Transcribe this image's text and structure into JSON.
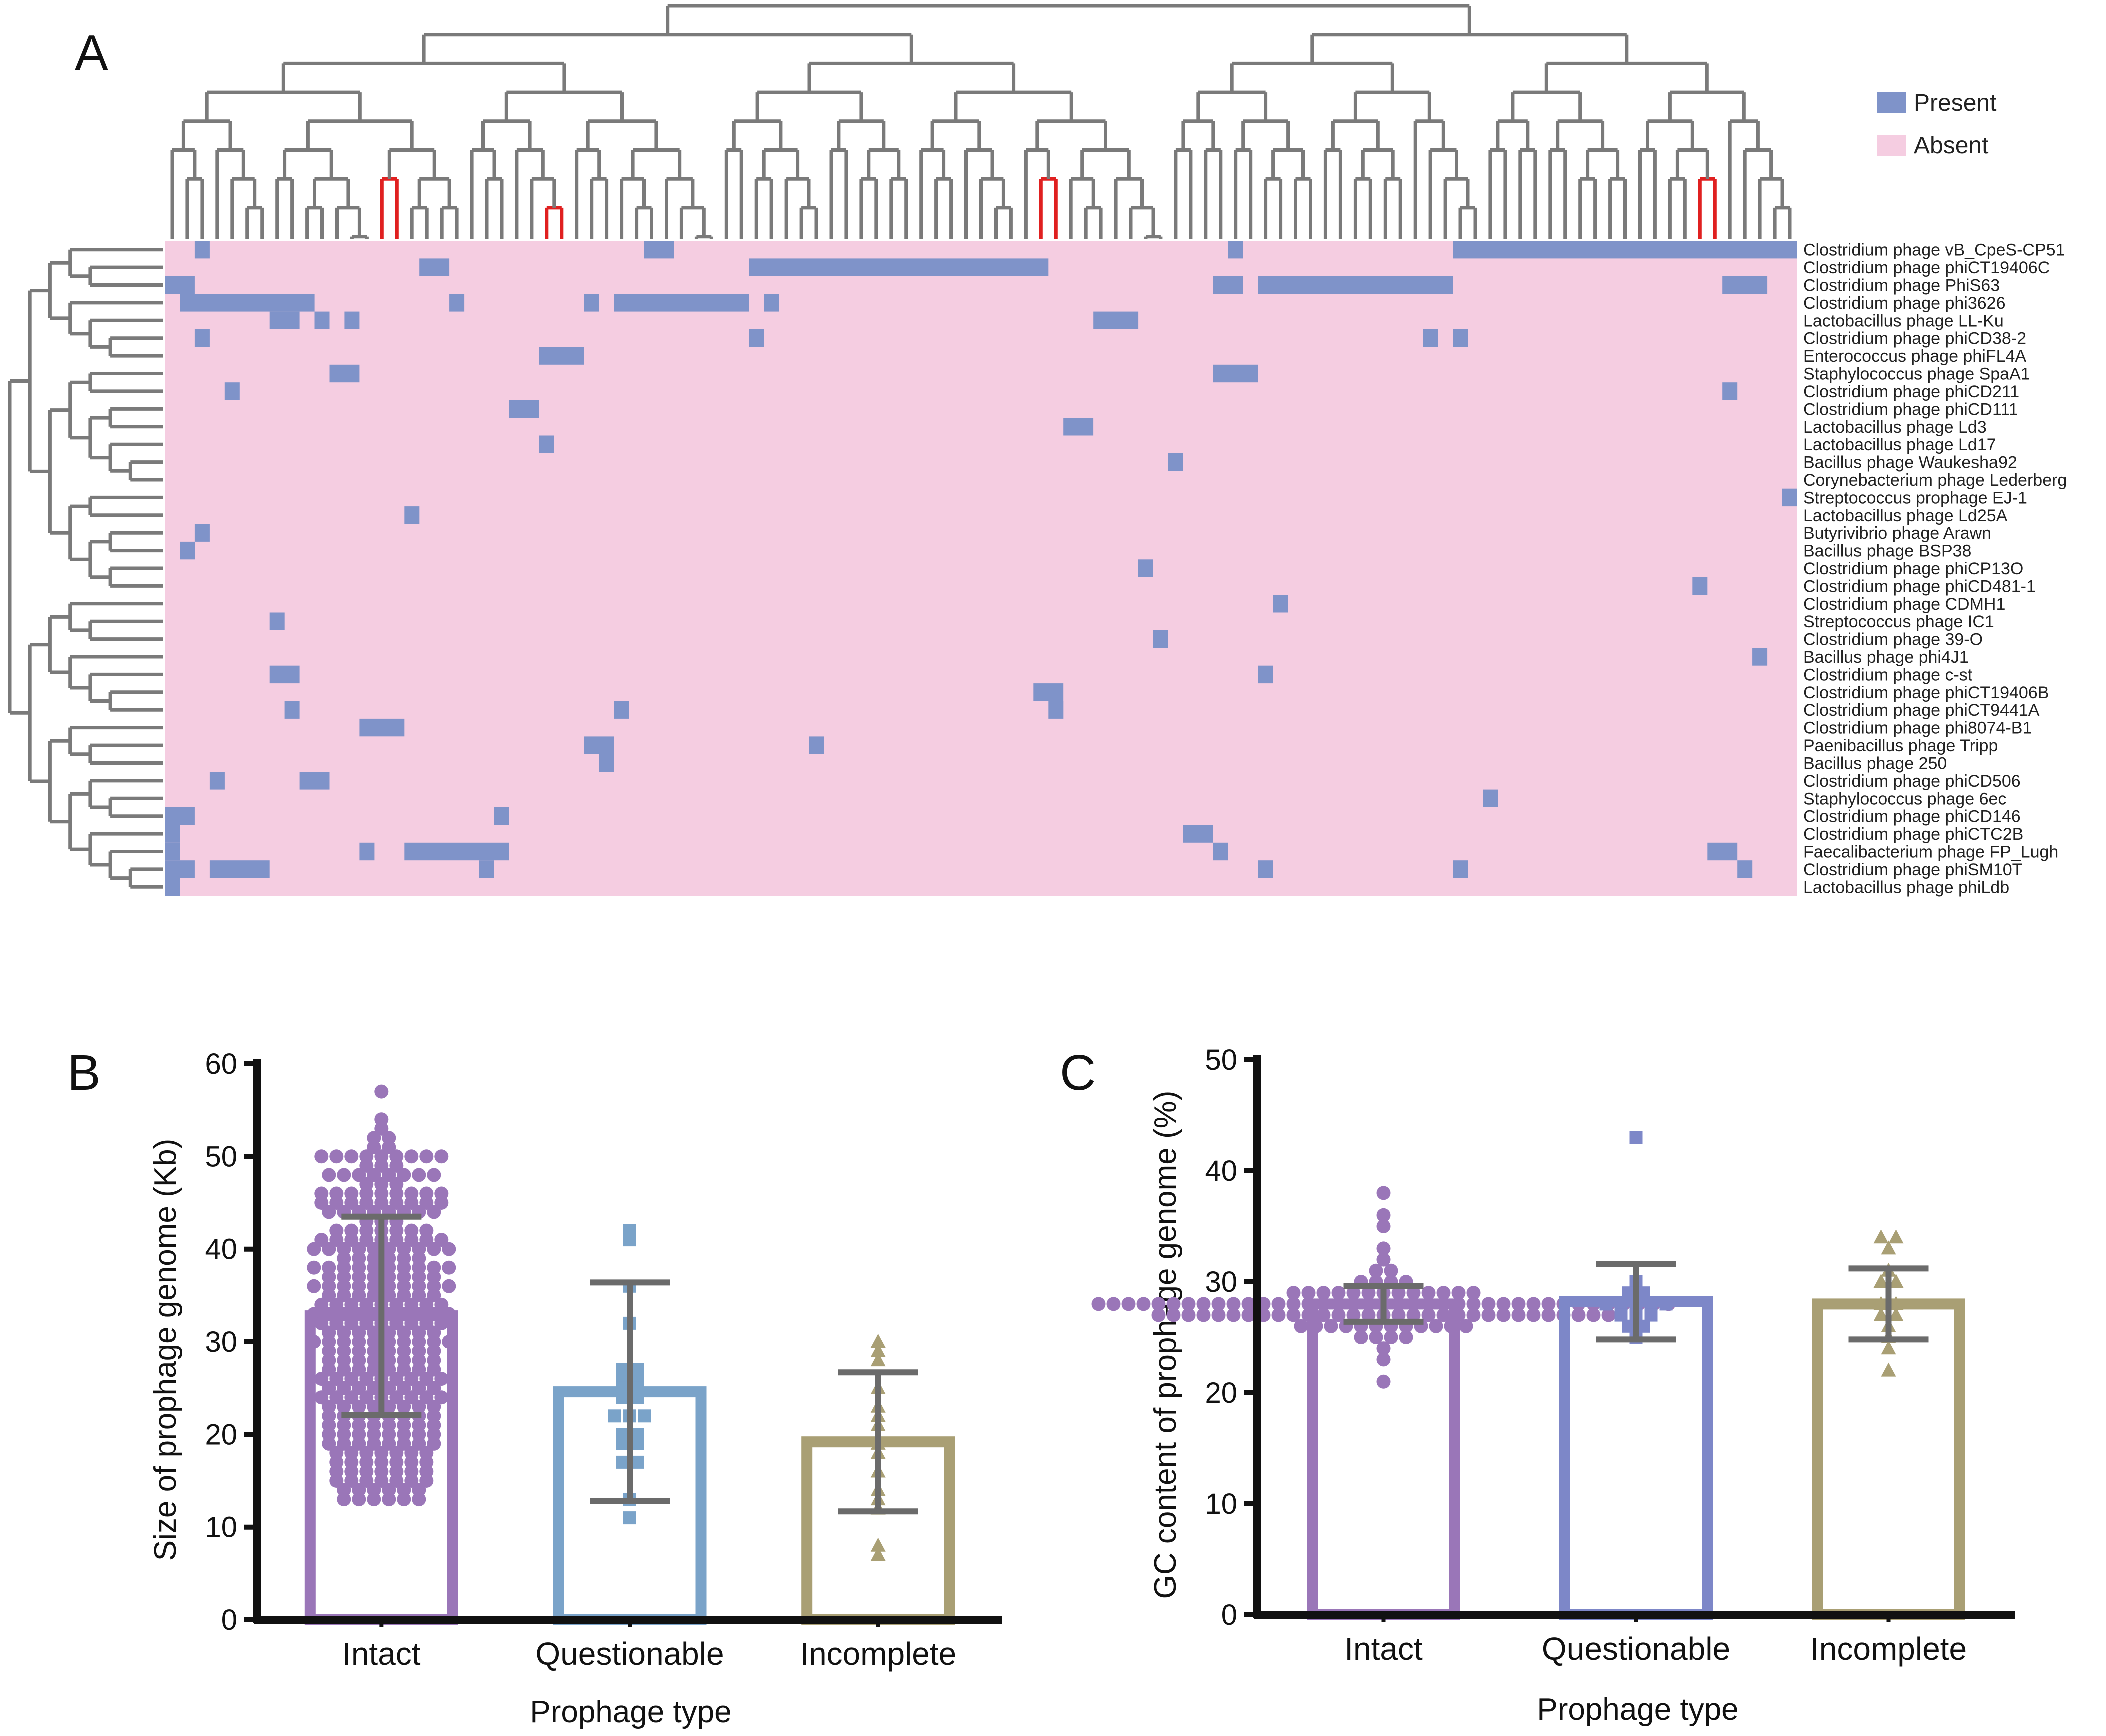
{
  "panels": {
    "a": "A",
    "b": "B",
    "c": "C"
  },
  "colors": {
    "present": "#7f93c9",
    "absent": "#f5cde1",
    "tree": "#7a7a7a",
    "tree_highlight": "#e02020",
    "intact": "#9a76b8",
    "questionable": "#7aa3c9",
    "questionable_c": "#7d87c8",
    "incomplete": "#a99f74",
    "axis": "#111111",
    "error_bar": "#6b6b6b"
  },
  "heatmap": {
    "legend": {
      "present": "Present",
      "absent": "Absent"
    },
    "rows": [
      "Clostridium phage vB_CpeS-CP51",
      "Clostridium phage phiCT19406C",
      "Clostridium phage PhiS63",
      "Clostridium phage phi3626",
      "Lactobacillus phage LL-Ku",
      "Clostridium phage phiCD38-2",
      "Enterococcus phage phiFL4A",
      "Staphylococcus phage SpaA1",
      "Clostridium phage phiCD211",
      "Clostridium phage phiCD111",
      "Lactobacillus phage Ld3",
      "Lactobacillus phage Ld17",
      "Bacillus phage Waukesha92",
      "Corynebacterium phage Lederberg",
      "Streptococcus prophage EJ-1",
      "Lactobacillus phage Ld25A",
      "Butyrivibrio phage Arawn",
      "Bacillus phage BSP38",
      "Clostridium phage phiCP13O",
      "Clostridium phage phiCD481-1",
      "Clostridium phage CDMH1",
      "Streptococcus phage IC1",
      "Clostridium phage 39-O",
      "Bacillus phage phi4J1",
      "Clostridium phage c-st",
      "Clostridium phage phiCT19406B",
      "Clostridium phage phiCT9441A",
      "Clostridium phage phi8074-B1",
      "Paenibacillus phage Tripp",
      "Bacillus phage 250",
      "Clostridium phage phiCD506",
      "Staphylococcus phage 6ec",
      "Clostridium phage phiCD146",
      "Clostridium phage phiCTC2B",
      "Faecalibacterium phage FP_Lugh",
      "Clostridium phage phiSM10T",
      "Lactobacillus phage phiLdb"
    ],
    "n_cols": 109,
    "present_cells": [
      [
        0,
        [
          [
            2,
            2
          ],
          [
            32,
            33
          ],
          [
            71,
            71
          ],
          [
            86,
            108
          ]
        ]
      ],
      [
        1,
        [
          [
            17,
            18
          ],
          [
            39,
            58
          ]
        ]
      ],
      [
        2,
        [
          [
            0,
            1
          ],
          [
            70,
            71
          ],
          [
            73,
            85
          ],
          [
            104,
            106
          ]
        ]
      ],
      [
        3,
        [
          [
            1,
            9
          ],
          [
            19,
            19
          ],
          [
            28,
            28
          ],
          [
            30,
            38
          ],
          [
            40,
            40
          ]
        ]
      ],
      [
        4,
        [
          [
            7,
            8
          ],
          [
            10,
            10
          ],
          [
            12,
            12
          ],
          [
            62,
            64
          ]
        ]
      ],
      [
        5,
        [
          [
            2,
            2
          ],
          [
            39,
            39
          ],
          [
            84,
            84
          ],
          [
            86,
            86
          ]
        ]
      ],
      [
        6,
        [
          [
            25,
            27
          ]
        ]
      ],
      [
        7,
        [
          [
            11,
            12
          ],
          [
            70,
            72
          ]
        ]
      ],
      [
        8,
        [
          [
            4,
            4
          ],
          [
            104,
            104
          ]
        ]
      ],
      [
        9,
        [
          [
            23,
            24
          ]
        ]
      ],
      [
        10,
        [
          [
            60,
            61
          ]
        ]
      ],
      [
        11,
        [
          [
            25,
            25
          ]
        ]
      ],
      [
        12,
        [
          [
            67,
            67
          ]
        ]
      ],
      [
        14,
        [
          [
            108,
            108
          ]
        ]
      ],
      [
        15,
        [
          [
            16,
            16
          ]
        ]
      ],
      [
        16,
        [
          [
            2,
            2
          ]
        ]
      ],
      [
        17,
        [
          [
            1,
            1
          ]
        ]
      ],
      [
        18,
        [
          [
            65,
            65
          ]
        ]
      ],
      [
        19,
        [
          [
            102,
            102
          ]
        ]
      ],
      [
        20,
        [
          [
            74,
            74
          ]
        ]
      ],
      [
        21,
        [
          [
            7,
            7
          ]
        ]
      ],
      [
        22,
        [
          [
            66,
            66
          ]
        ]
      ],
      [
        23,
        [
          [
            106,
            106
          ]
        ]
      ],
      [
        24,
        [
          [
            7,
            8
          ],
          [
            73,
            73
          ]
        ]
      ],
      [
        25,
        [
          [
            58,
            59
          ]
        ]
      ],
      [
        26,
        [
          [
            8,
            8
          ],
          [
            30,
            30
          ],
          [
            59,
            59
          ]
        ]
      ],
      [
        27,
        [
          [
            13,
            15
          ]
        ]
      ],
      [
        28,
        [
          [
            28,
            29
          ],
          [
            43,
            43
          ]
        ]
      ],
      [
        29,
        [
          [
            29,
            29
          ]
        ]
      ],
      [
        30,
        [
          [
            3,
            3
          ],
          [
            9,
            10
          ]
        ]
      ],
      [
        31,
        [
          [
            88,
            88
          ]
        ]
      ],
      [
        32,
        [
          [
            0,
            1
          ],
          [
            22,
            22
          ]
        ]
      ],
      [
        33,
        [
          [
            0,
            0
          ],
          [
            68,
            69
          ]
        ]
      ],
      [
        34,
        [
          [
            0,
            0
          ],
          [
            13,
            13
          ],
          [
            16,
            22
          ],
          [
            70,
            70
          ],
          [
            103,
            104
          ]
        ]
      ],
      [
        35,
        [
          [
            0,
            1
          ],
          [
            3,
            6
          ],
          [
            21,
            21
          ],
          [
            73,
            73
          ],
          [
            86,
            86
          ],
          [
            105,
            105
          ]
        ]
      ],
      [
        36,
        [
          [
            0,
            0
          ]
        ]
      ]
    ]
  },
  "chart_data": [
    {
      "panel": "B",
      "type": "bar",
      "categories": [
        "Intact",
        "Questionable",
        "Incomplete"
      ],
      "values": [
        32.8,
        24.6,
        19.2
      ],
      "error_sd": [
        10.7,
        11.8,
        7.5
      ],
      "xlabel": "Prophage type",
      "ylabel": "Size of prophage genome (Kb)",
      "ylim": [
        0,
        60
      ],
      "yticks": [
        0,
        10,
        20,
        30,
        40,
        50,
        60
      ],
      "points": [
        {
          "category": "Intact",
          "marker": "circle",
          "values": [
            57,
            54,
            53,
            52,
            52,
            51,
            51,
            50,
            50,
            50,
            50,
            50,
            50,
            50,
            50,
            50,
            49,
            49,
            49,
            48,
            48,
            48,
            48,
            48,
            48,
            48,
            48,
            47,
            47,
            47,
            46,
            46,
            46,
            46,
            46,
            46,
            46,
            46,
            46,
            45,
            45,
            45,
            45,
            45,
            45,
            45,
            45,
            45,
            44,
            44,
            44,
            44,
            44,
            44,
            44,
            44,
            43,
            43,
            43,
            42,
            42,
            42,
            42,
            42,
            42,
            42,
            41,
            41,
            41,
            41,
            41,
            41,
            41,
            41,
            41,
            40,
            40,
            40,
            40,
            40,
            40,
            40,
            40,
            40,
            40,
            39,
            39,
            39,
            39,
            39,
            39,
            38,
            38,
            38,
            38,
            38,
            38,
            38,
            38,
            38,
            38,
            37,
            37,
            37,
            37,
            37,
            37,
            37,
            37,
            36,
            36,
            36,
            36,
            36,
            36,
            36,
            36,
            36,
            36,
            35,
            35,
            35,
            35,
            35,
            35,
            35,
            35,
            34,
            34,
            34,
            34,
            34,
            34,
            34,
            34,
            34,
            33,
            33,
            33,
            33,
            33,
            33,
            33,
            33,
            33,
            33,
            32,
            32,
            32,
            32,
            32,
            32,
            32,
            32,
            32,
            31,
            31,
            31,
            31,
            31,
            31,
            31,
            31,
            30,
            30,
            30,
            30,
            30,
            30,
            30,
            30,
            30,
            30,
            29,
            29,
            29,
            29,
            29,
            29,
            29,
            29,
            28,
            28,
            28,
            28,
            28,
            28,
            28,
            28,
            27,
            27,
            27,
            27,
            27,
            27,
            27,
            27,
            26,
            26,
            26,
            26,
            26,
            26,
            26,
            26,
            26,
            25,
            25,
            25,
            25,
            25,
            25,
            25,
            25,
            24,
            24,
            24,
            24,
            24,
            24,
            24,
            24,
            24,
            23,
            23,
            23,
            23,
            23,
            23,
            23,
            23,
            22,
            22,
            22,
            22,
            22,
            22,
            22,
            22,
            21,
            21,
            21,
            21,
            21,
            21,
            21,
            21,
            20,
            20,
            20,
            20,
            20,
            20,
            20,
            20,
            19,
            19,
            19,
            19,
            19,
            19,
            19,
            19,
            18,
            18,
            18,
            18,
            18,
            18,
            18,
            17,
            17,
            17,
            17,
            17,
            17,
            17,
            16,
            16,
            16,
            16,
            16,
            16,
            16,
            15,
            15,
            15,
            15,
            15,
            15,
            15,
            14,
            14,
            14,
            14,
            14,
            14,
            13,
            13,
            13,
            13,
            13,
            13
          ]
        },
        {
          "category": "Questionable",
          "marker": "square",
          "values": [
            42,
            41,
            36,
            32,
            27,
            27,
            26,
            26,
            25,
            25,
            24,
            24,
            22,
            22,
            22,
            20,
            20,
            19,
            19,
            17,
            17,
            13,
            11
          ]
        },
        {
          "category": "Incomplete",
          "marker": "triangle",
          "values": [
            30,
            29,
            28,
            25,
            23,
            22,
            21,
            19,
            18,
            16,
            14,
            13,
            12,
            8,
            7
          ]
        }
      ]
    },
    {
      "panel": "C",
      "type": "bar",
      "categories": [
        "Intact",
        "Questionable",
        "Incomplete"
      ],
      "values": [
        28.0,
        28.2,
        28.0
      ],
      "error_sd": [
        1.6,
        3.4,
        3.2
      ],
      "xlabel": "Prophage type",
      "ylabel": "GC content of prophage genome (%)",
      "ylim": [
        0,
        50
      ],
      "yticks": [
        0,
        10,
        20,
        30,
        40,
        50
      ],
      "points": [
        {
          "category": "Intact",
          "marker": "circle",
          "values": [
            38,
            36,
            35,
            33,
            32,
            31,
            31,
            30,
            30,
            30,
            30,
            29,
            29,
            29,
            29,
            29,
            29,
            29,
            29,
            29,
            29,
            29,
            29,
            29,
            28,
            28,
            28,
            28,
            28,
            28,
            28,
            28,
            28,
            28,
            28,
            28,
            28,
            28,
            28,
            28,
            28,
            28,
            28,
            28,
            28,
            28,
            28,
            28,
            28,
            28,
            28,
            28,
            28,
            28,
            28,
            28,
            28,
            28,
            28,
            28,
            28,
            28,
            28,
            27,
            27,
            27,
            27,
            27,
            27,
            27,
            27,
            27,
            27,
            27,
            27,
            27,
            27,
            27,
            27,
            27,
            27,
            27,
            27,
            27,
            27,
            27,
            27,
            27,
            27,
            27,
            27,
            27,
            27,
            27,
            26,
            26,
            26,
            26,
            26,
            26,
            26,
            26,
            26,
            26,
            26,
            26,
            25,
            25,
            25,
            25,
            24,
            23,
            21
          ]
        },
        {
          "category": "Questionable",
          "marker": "square",
          "values": [
            43,
            30,
            29,
            29,
            28,
            28,
            28,
            28,
            28,
            27,
            27,
            27,
            26,
            26,
            25
          ]
        },
        {
          "category": "Incomplete",
          "marker": "triangle",
          "values": [
            34,
            34,
            33,
            31,
            30,
            30,
            28,
            28,
            27,
            27,
            26,
            25,
            24,
            22
          ]
        }
      ]
    }
  ]
}
